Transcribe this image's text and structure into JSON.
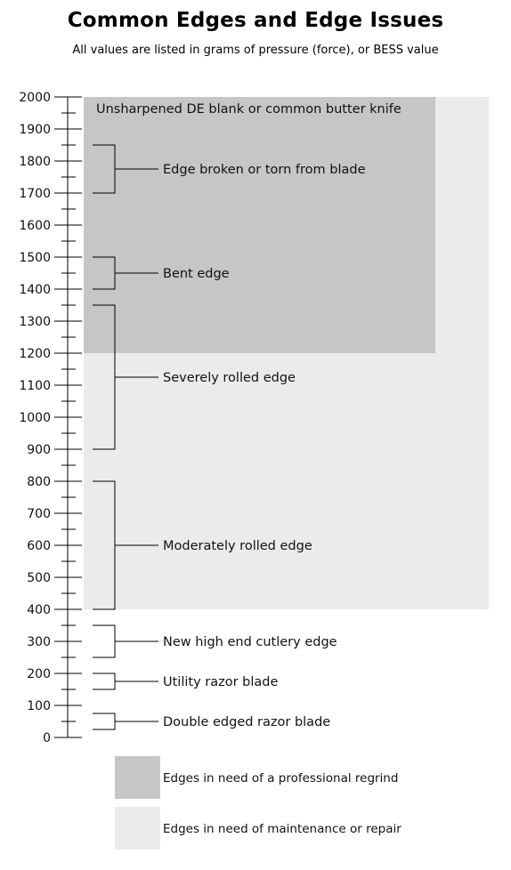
{
  "title": "Common Edges and Edge Issues",
  "subtitle": "All values are listed in grams of pressure (force), or BESS value",
  "chart_data": {
    "type": "range",
    "ylim": [
      0,
      2000
    ],
    "y_ticks": [
      0,
      100,
      200,
      300,
      400,
      500,
      600,
      700,
      800,
      900,
      1000,
      1100,
      1200,
      1300,
      1400,
      1500,
      1600,
      1700,
      1800,
      1900,
      2000
    ],
    "minor_tick_step": 50,
    "regions": [
      {
        "label": "",
        "from": 400,
        "to": 2000,
        "color": "#ebebeb",
        "legend": "Edges in need of maintenance or repair"
      },
      {
        "label": "Unsharpened DE blank or common butter knife",
        "from": 1200,
        "to": 2000,
        "color": "#c6c6c6",
        "legend": "Edges in need of a professional regrind"
      }
    ],
    "ranges": [
      {
        "label": "Edge broken or torn from blade",
        "from": 1700,
        "to": 1850
      },
      {
        "label": "Bent edge",
        "from": 1400,
        "to": 1500
      },
      {
        "label": "Severely rolled edge",
        "from": 900,
        "to": 1350
      },
      {
        "label": "Moderately rolled edge",
        "from": 400,
        "to": 800
      },
      {
        "label": "New high end cutlery edge",
        "from": 250,
        "to": 350
      },
      {
        "label": "Utility razor blade",
        "from": 150,
        "to": 200
      },
      {
        "label": "Double edged razor blade",
        "from": 25,
        "to": 75
      }
    ],
    "legend": [
      {
        "label": "Edges in need of a professional regrind",
        "color": "#c6c6c6"
      },
      {
        "label": "Edges in need of maintenance or repair",
        "color": "#ebebeb"
      }
    ]
  }
}
